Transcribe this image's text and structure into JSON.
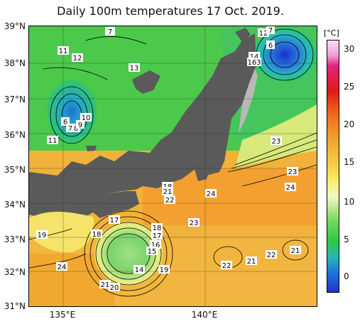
{
  "title": "Daily 100m temperatures 17 Oct. 2019.",
  "lat_labels": [
    "39°N",
    "38°N",
    "37°N",
    "36°N",
    "35°N",
    "34°N",
    "33°N",
    "32°N",
    "31°N"
  ],
  "lon_labels": [
    "135°E",
    "140°E"
  ],
  "colorbar": {
    "unit": "[°C]",
    "ticks": [
      "30",
      "25",
      "20",
      "15",
      "10",
      "5",
      "0"
    ]
  },
  "contour_labels": [
    {
      "id": "c1",
      "text": "7"
    },
    {
      "id": "c2",
      "text": "11"
    },
    {
      "id": "c3",
      "text": "12"
    },
    {
      "id": "c4",
      "text": "13"
    },
    {
      "id": "c5",
      "text": "6"
    },
    {
      "id": "c6",
      "text": "10"
    },
    {
      "id": "c7",
      "text": "7"
    },
    {
      "id": "c8",
      "text": "8"
    },
    {
      "id": "c9",
      "text": "9"
    },
    {
      "id": "c10",
      "text": "11"
    },
    {
      "id": "c11",
      "text": "12"
    },
    {
      "id": "c12",
      "text": "7"
    },
    {
      "id": "c13",
      "text": "6"
    },
    {
      "id": "c14",
      "text": "14"
    },
    {
      "id": "c15",
      "text": "163"
    },
    {
      "id": "c16",
      "text": "23"
    },
    {
      "id": "c17",
      "text": "23"
    },
    {
      "id": "c18",
      "text": "24"
    },
    {
      "id": "c19",
      "text": "24"
    },
    {
      "id": "c20",
      "text": "18"
    },
    {
      "id": "c21",
      "text": "21"
    },
    {
      "id": "c22",
      "text": "22"
    },
    {
      "id": "c23",
      "text": "17"
    },
    {
      "id": "c24",
      "text": "18"
    },
    {
      "id": "c25",
      "text": "17"
    },
    {
      "id": "c26",
      "text": "16"
    },
    {
      "id": "c27",
      "text": "15"
    },
    {
      "id": "c28",
      "text": "18"
    },
    {
      "id": "c29",
      "text": "23"
    },
    {
      "id": "c30",
      "text": "19"
    },
    {
      "id": "c31",
      "text": "14"
    },
    {
      "id": "c32",
      "text": "19"
    },
    {
      "id": "c33",
      "text": "24"
    },
    {
      "id": "c34",
      "text": "21"
    },
    {
      "id": "c35",
      "text": "22"
    },
    {
      "id": "c36",
      "text": "21"
    },
    {
      "id": "c37",
      "text": "22"
    },
    {
      "id": "c38",
      "text": "21"
    },
    {
      "id": "c39",
      "text": "20"
    }
  ]
}
